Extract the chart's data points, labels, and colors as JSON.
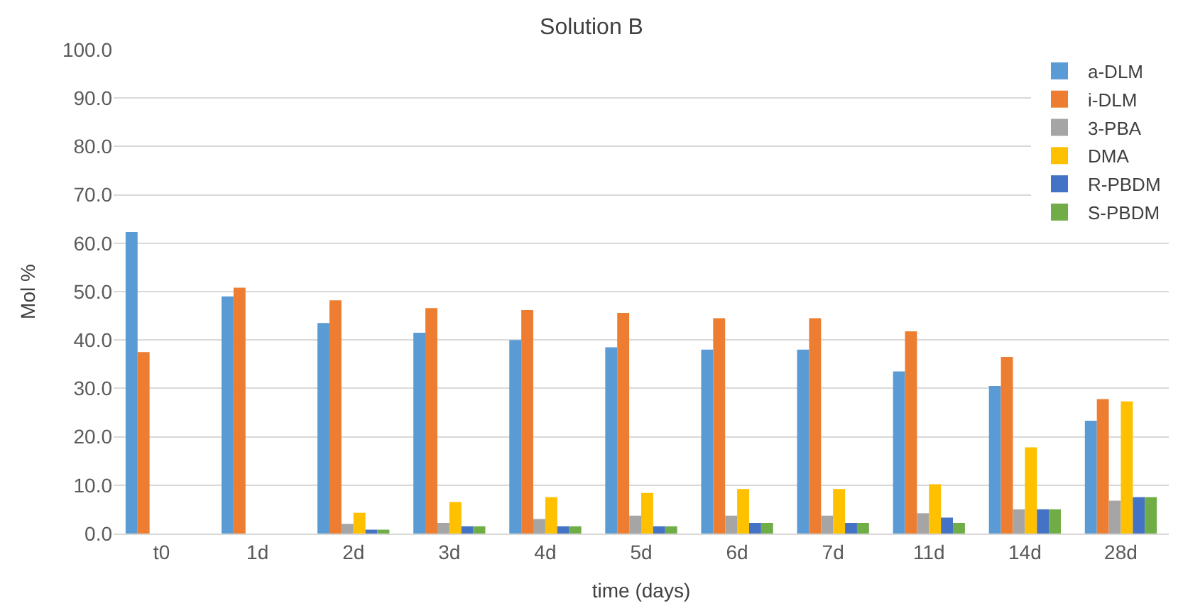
{
  "chart_data": {
    "type": "bar",
    "title": "Solution B",
    "xlabel": "time (days)",
    "ylabel": "Mol %",
    "categories": [
      "t0",
      "1d",
      "2d",
      "3d",
      "4d",
      "5d",
      "6d",
      "7d",
      "11d",
      "14d",
      "28d"
    ],
    "series": [
      {
        "name": "a-DLM",
        "color": "#5b9bd5",
        "values": [
          62.3,
          49.0,
          43.5,
          41.5,
          40.0,
          38.5,
          38.0,
          38.0,
          33.5,
          30.5,
          23.3
        ]
      },
      {
        "name": "i-DLM",
        "color": "#ed7d31",
        "values": [
          37.5,
          50.8,
          48.2,
          46.6,
          46.2,
          45.6,
          44.5,
          44.5,
          41.8,
          36.5,
          27.8
        ]
      },
      {
        "name": "3-PBA",
        "color": "#a5a5a5",
        "values": [
          0,
          0,
          2.0,
          2.2,
          3.0,
          3.7,
          3.7,
          3.7,
          4.2,
          5.0,
          6.8
        ]
      },
      {
        "name": "DMA",
        "color": "#ffc000",
        "values": [
          0,
          0,
          4.3,
          6.5,
          7.5,
          8.4,
          9.2,
          9.2,
          10.2,
          17.8,
          27.3
        ]
      },
      {
        "name": "R-PBDM",
        "color": "#4472c4",
        "values": [
          0,
          0,
          0.8,
          1.5,
          1.5,
          1.5,
          2.2,
          2.2,
          3.3,
          5.0,
          7.5
        ]
      },
      {
        "name": "S-PBDM",
        "color": "#70ad47",
        "values": [
          0,
          0,
          0.8,
          1.5,
          1.5,
          1.5,
          2.2,
          2.2,
          2.2,
          5.0,
          7.5
        ]
      }
    ],
    "ylim": [
      0,
      100
    ],
    "yticks": [
      {
        "value": 0,
        "label": "0.0"
      },
      {
        "value": 10,
        "label": "10.0"
      },
      {
        "value": 20,
        "label": "20.0"
      },
      {
        "value": 30,
        "label": "30.0"
      },
      {
        "value": 40,
        "label": "40.0"
      },
      {
        "value": 50,
        "label": "50.0"
      },
      {
        "value": 60,
        "label": "60.0"
      },
      {
        "value": 70,
        "label": "70.0"
      },
      {
        "value": 80,
        "label": "80.0"
      },
      {
        "value": 90,
        "label": "90.0"
      },
      {
        "value": 100,
        "label": "100.0"
      }
    ],
    "grid": "y",
    "legend": "top right"
  }
}
